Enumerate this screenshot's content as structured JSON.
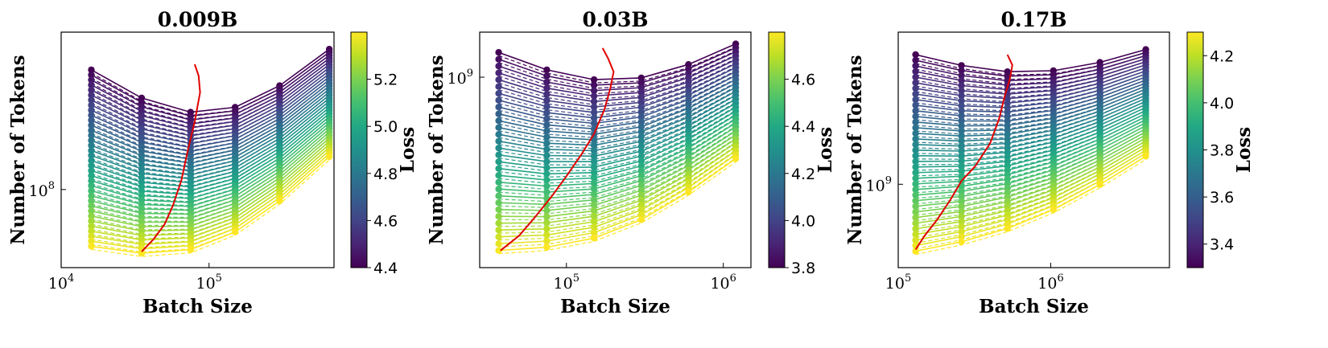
{
  "chart_data": [
    {
      "type": "line",
      "title": "0.009B",
      "xlabel": "Batch Size",
      "ylabel": "Number of Tokens",
      "xscale": "log",
      "yscale": "log",
      "xlim": [
        10000,
        700000
      ],
      "ylim": [
        45000000,
        500000000
      ],
      "x_ticks": [
        {
          "value": 10000,
          "base": "10",
          "exp": "4"
        },
        {
          "value": 100000,
          "base": "10",
          "exp": "5"
        }
      ],
      "y_ticks": [
        {
          "value": 100000000,
          "base": "10",
          "exp": "8"
        }
      ],
      "batch_sizes": [
        16000,
        35000,
        75000,
        150000,
        300000,
        650000
      ],
      "first_x_index": 0,
      "n_curves": 36,
      "y_top_left": 340000000,
      "y_bottom_left": 56000000,
      "y_top_right": 420000000,
      "y_bottom_right": 140000000,
      "optimal_frontier": {
        "color": "#e00000",
        "x": [
          35000,
          42000,
          50000,
          57000,
          65000,
          72000,
          80000,
          87000,
          85000,
          80000
        ],
        "y": [
          53000000,
          60000000,
          70000000,
          85000000,
          110000000,
          150000000,
          200000000,
          270000000,
          320000000,
          360000000
        ]
      },
      "colorbar": {
        "label": "Loss",
        "min": 4.4,
        "max": 5.4,
        "ticks": [
          {
            "value": 4.4,
            "label": "4.4"
          },
          {
            "value": 4.6,
            "label": "4.6"
          },
          {
            "value": 4.8,
            "label": "4.8"
          },
          {
            "value": 5.0,
            "label": "5.0"
          },
          {
            "value": 5.2,
            "label": "5.2"
          }
        ]
      }
    },
    {
      "type": "line",
      "title": "0.03B",
      "xlabel": "Batch Size",
      "ylabel": "Number of Tokens",
      "xscale": "log",
      "yscale": "log",
      "xlim": [
        28000,
        1500000
      ],
      "ylim": [
        180000000,
        1500000000
      ],
      "x_ticks": [
        {
          "value": 100000,
          "base": "10",
          "exp": "5"
        },
        {
          "value": 1000000,
          "base": "10",
          "exp": "6"
        }
      ],
      "y_ticks": [
        {
          "value": 1000000000,
          "base": "10",
          "exp": "9"
        }
      ],
      "batch_sizes": [
        37000,
        75000,
        150000,
        300000,
        600000,
        1200000
      ],
      "first_x_index": 0,
      "n_curves": 30,
      "y_top_left": 1250000000,
      "y_bottom_left": 210000000,
      "y_top_right": 1350000000,
      "y_bottom_right": 480000000,
      "optimal_frontier": {
        "color": "#e00000",
        "x": [
          38000,
          50000,
          62000,
          80000,
          100000,
          125000,
          150000,
          175000,
          190000,
          200000,
          185000,
          170000
        ],
        "y": [
          210000000,
          240000000,
          280000000,
          340000000,
          410000000,
          500000000,
          600000000,
          750000000,
          900000000,
          1050000000,
          1180000000,
          1300000000
        ]
      },
      "colorbar": {
        "label": "Loss",
        "min": 3.8,
        "max": 4.8,
        "ticks": [
          {
            "value": 3.8,
            "label": "3.8"
          },
          {
            "value": 4.0,
            "label": "4.0"
          },
          {
            "value": 4.2,
            "label": "4.2"
          },
          {
            "value": 4.4,
            "label": "4.4"
          },
          {
            "value": 4.6,
            "label": "4.6"
          }
        ]
      }
    },
    {
      "type": "line",
      "title": "0.17B",
      "xlabel": "Batch Size",
      "ylabel": "Number of Tokens",
      "xscale": "log",
      "yscale": "log",
      "xlim": [
        100000,
        6000000
      ],
      "ylim": [
        300000000,
        9000000000
      ],
      "x_ticks": [
        {
          "value": 100000,
          "base": "10",
          "exp": "5"
        },
        {
          "value": 1000000,
          "base": "10",
          "exp": "6"
        }
      ],
      "y_ticks": [
        {
          "value": 1000000000,
          "base": "10",
          "exp": "9"
        }
      ],
      "batch_sizes": [
        130000,
        260000,
        520000,
        1040000,
        2100000,
        4200000
      ],
      "first_x_index": 0,
      "n_curves": 36,
      "y_top_left": 6500000000,
      "y_bottom_left": 380000000,
      "y_top_right": 7000000000,
      "y_bottom_right": 1500000000,
      "optimal_frontier": {
        "color": "#e00000",
        "x": [
          130000,
          150000,
          180000,
          220000,
          260000,
          320000,
          400000,
          460000,
          500000,
          540000,
          560000,
          520000
        ],
        "y": [
          390000000,
          480000000,
          600000000,
          800000000,
          1050000000,
          1300000000,
          1800000000,
          2600000000,
          3600000000,
          4600000000,
          5600000000,
          6500000000
        ]
      },
      "colorbar": {
        "label": "Loss",
        "min": 3.3,
        "max": 4.3,
        "ticks": [
          {
            "value": 3.4,
            "label": "3.4"
          },
          {
            "value": 3.6,
            "label": "3.6"
          },
          {
            "value": 3.8,
            "label": "3.8"
          },
          {
            "value": 4.0,
            "label": "4.0"
          },
          {
            "value": 4.2,
            "label": "4.2"
          }
        ]
      }
    }
  ]
}
